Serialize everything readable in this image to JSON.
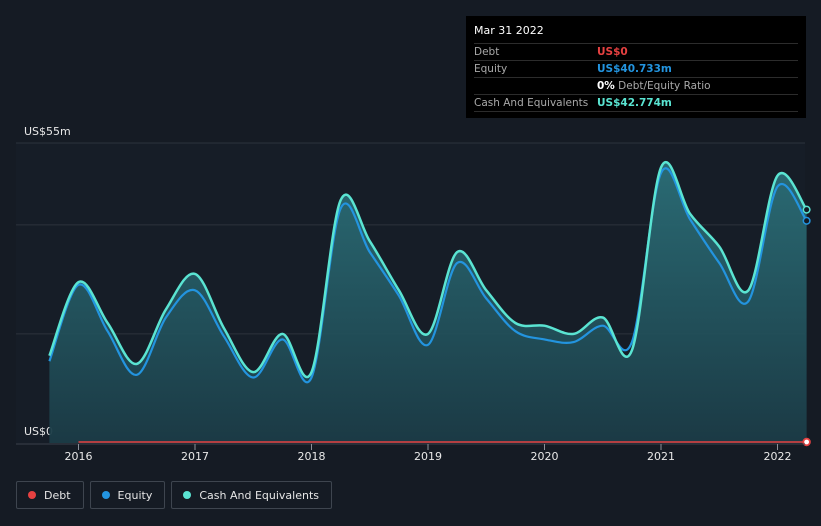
{
  "chart_data": {
    "type": "area",
    "y_top_label": "US$55m",
    "y_bottom_label": "US$0",
    "ylim": [
      0,
      55
    ],
    "xlim": [
      2015.75,
      2022.25
    ],
    "x_ticks": [
      2016,
      2017,
      2018,
      2019,
      2020,
      2021,
      2022
    ],
    "x_tick_labels": [
      "2016",
      "2017",
      "2018",
      "2019",
      "2020",
      "2021",
      "2022"
    ],
    "grid": true,
    "legend_position": "bottom-left",
    "series": [
      {
        "name": "Cash And Equivalents",
        "color": "#5ae4d2",
        "x": [
          2015.75,
          2016.0,
          2016.25,
          2016.5,
          2016.75,
          2017.0,
          2017.25,
          2017.5,
          2017.75,
          2018.0,
          2018.25,
          2018.5,
          2018.75,
          2019.0,
          2019.25,
          2019.5,
          2019.75,
          2020.0,
          2020.25,
          2020.5,
          2020.75,
          2021.0,
          2021.25,
          2021.5,
          2021.75,
          2022.0,
          2022.25
        ],
        "values": [
          16,
          29.5,
          22,
          14.5,
          24.5,
          31,
          21,
          13,
          20,
          13,
          44.5,
          37,
          28,
          20,
          35,
          28,
          22,
          21.5,
          20,
          23,
          17,
          50.5,
          42,
          36,
          28,
          49,
          42.774
        ]
      },
      {
        "name": "Equity",
        "color": "#2394df",
        "x": [
          2015.75,
          2016.0,
          2016.25,
          2016.5,
          2016.75,
          2017.0,
          2017.25,
          2017.5,
          2017.75,
          2018.0,
          2018.25,
          2018.5,
          2018.75,
          2019.0,
          2019.25,
          2019.5,
          2019.75,
          2020.0,
          2020.25,
          2020.5,
          2020.75,
          2021.0,
          2021.25,
          2021.5,
          2021.75,
          2022.0,
          2022.25
        ],
        "values": [
          15,
          29,
          20.5,
          12.5,
          23,
          28,
          19.5,
          12,
          19,
          12,
          43,
          35,
          27,
          18,
          33,
          26.5,
          20.5,
          19,
          18.5,
          21.5,
          18.5,
          49.5,
          41,
          33,
          26,
          47,
          40.733
        ]
      },
      {
        "name": "Debt",
        "color": "#e64141",
        "x": [
          2016.0,
          2022.25
        ],
        "values": [
          0,
          0
        ]
      }
    ]
  },
  "tooltip": {
    "date": "Mar 31 2022",
    "debt_label": "Debt",
    "debt_value": "US$0",
    "equity_label": "Equity",
    "equity_value": "US$40.733m",
    "ratio_value": "0%",
    "ratio_label": "Debt/Equity Ratio",
    "cash_label": "Cash And Equivalents",
    "cash_value": "US$42.774m"
  },
  "legend": [
    {
      "label": "Debt",
      "color": "#e64141"
    },
    {
      "label": "Equity",
      "color": "#2394df"
    },
    {
      "label": "Cash And Equivalents",
      "color": "#5ae4d2"
    }
  ]
}
